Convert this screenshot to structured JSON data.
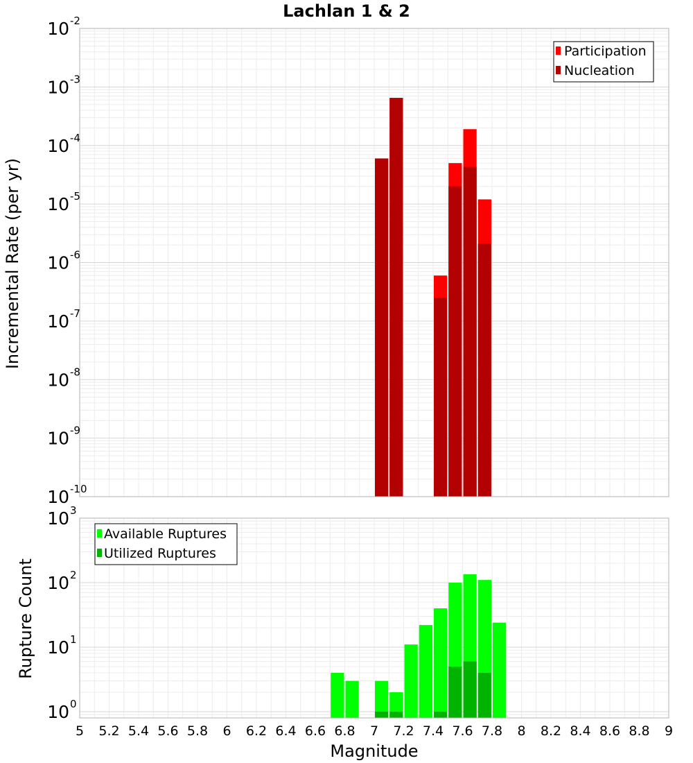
{
  "chart_data": [
    {
      "type": "bar",
      "title": "Lachlan 1 & 2",
      "xlabel": "",
      "ylabel": "Incremental Rate (per yr)",
      "yscale": "log",
      "xlim": [
        5,
        9
      ],
      "ylim": [
        1e-10,
        0.01
      ],
      "bar_width": 0.1,
      "y_ticks": [
        {
          "base": "10",
          "exp": "-10",
          "value": 1e-10
        },
        {
          "base": "10",
          "exp": "-9",
          "value": 1e-09
        },
        {
          "base": "10",
          "exp": "-8",
          "value": 1e-08
        },
        {
          "base": "10",
          "exp": "-7",
          "value": 1e-07
        },
        {
          "base": "10",
          "exp": "-6",
          "value": 1e-06
        },
        {
          "base": "10",
          "exp": "-5",
          "value": 1e-05
        },
        {
          "base": "10",
          "exp": "-4",
          "value": 0.0001
        },
        {
          "base": "10",
          "exp": "-3",
          "value": 0.001
        },
        {
          "base": "10",
          "exp": "-2",
          "value": 0.01
        }
      ],
      "legend": "top-right",
      "grid": true,
      "series": [
        {
          "name": "Participation",
          "color": "#ff0000",
          "x": [
            7.05,
            7.15,
            7.45,
            7.55,
            7.65,
            7.75
          ],
          "values": [
            6e-05,
            0.00065,
            6e-07,
            5e-05,
            0.00019,
            1.2e-05
          ]
        },
        {
          "name": "Nucleation",
          "color": "#b30000",
          "x": [
            7.05,
            7.15,
            7.45,
            7.55,
            7.65,
            7.75
          ],
          "values": [
            6e-05,
            0.00065,
            2.5e-07,
            2e-05,
            4.3e-05,
            2.1e-06
          ]
        }
      ]
    },
    {
      "type": "bar",
      "title": "",
      "xlabel": "Magnitude",
      "ylabel": "Rupture Count",
      "yscale": "log",
      "xlim": [
        5,
        9
      ],
      "ylim": [
        0.8,
        1000
      ],
      "bar_width": 0.1,
      "x_ticks": [
        "5",
        "5.2",
        "5.4",
        "5.6",
        "5.8",
        "6",
        "6.2",
        "6.4",
        "6.6",
        "6.8",
        "7",
        "7.2",
        "7.4",
        "7.6",
        "7.8",
        "8",
        "8.2",
        "8.4",
        "8.6",
        "8.8",
        "9"
      ],
      "y_ticks": [
        {
          "base": "10",
          "exp": "0",
          "value": 1
        },
        {
          "base": "10",
          "exp": "1",
          "value": 10
        },
        {
          "base": "10",
          "exp": "2",
          "value": 100
        },
        {
          "base": "10",
          "exp": "3",
          "value": 1000
        }
      ],
      "legend": "top-left",
      "grid": true,
      "series": [
        {
          "name": "Available Ruptures",
          "color": "#00ff00",
          "x": [
            6.75,
            6.85,
            7.05,
            7.15,
            7.25,
            7.35,
            7.45,
            7.55,
            7.65,
            7.75,
            7.85
          ],
          "values": [
            4,
            3,
            3,
            2,
            11,
            22,
            40,
            100,
            135,
            110,
            24
          ]
        },
        {
          "name": "Utilized Ruptures",
          "color": "#00b300",
          "x": [
            7.05,
            7.15,
            7.45,
            7.55,
            7.65,
            7.75
          ],
          "values": [
            1,
            1,
            1,
            5,
            6,
            4
          ]
        }
      ]
    }
  ]
}
